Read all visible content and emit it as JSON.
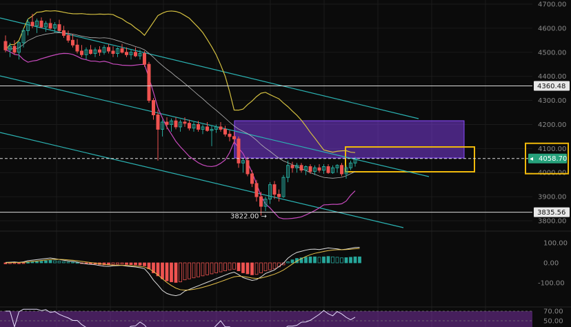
{
  "chart_data": {
    "type": "candlestick",
    "main_panel": {
      "y_ticks": [
        {
          "value": 4700,
          "label": "4700.00"
        },
        {
          "value": 4600,
          "label": "4600.00"
        },
        {
          "value": 4500,
          "label": "4500.00"
        },
        {
          "value": 4400,
          "label": "4400.00"
        },
        {
          "value": 4300,
          "label": "4300.00"
        },
        {
          "value": 4200,
          "label": "4200.00"
        },
        {
          "value": 4100,
          "label": "4100.00"
        },
        {
          "value": 4000,
          "label": "4000.00"
        },
        {
          "value": 3900,
          "label": "3900.00"
        },
        {
          "value": 3800,
          "label": "3800.00"
        }
      ],
      "ylim": [
        3775,
        4710
      ],
      "horizontal_levels": [
        {
          "value": 4360.48,
          "label": "4360.48",
          "style": "solid",
          "color": "#dddddd"
        },
        {
          "value": 3835.56,
          "label": "3835.56",
          "style": "solid",
          "color": "#dddddd"
        },
        {
          "value": 4058.7,
          "label": "4058.70",
          "style": "dashed",
          "color": "#dddddd"
        }
      ],
      "current_price": {
        "value": 4058.7,
        "label": "4058.70",
        "color": "#26a17b"
      },
      "low_annotation": {
        "value": 3822.0,
        "text": "3822.00 →"
      },
      "candles": [
        {
          "o": 4545,
          "h": 4570,
          "l": 4500,
          "c": 4510
        },
        {
          "o": 4510,
          "h": 4540,
          "l": 4480,
          "c": 4525
        },
        {
          "o": 4525,
          "h": 4550,
          "l": 4490,
          "c": 4500
        },
        {
          "o": 4500,
          "h": 4545,
          "l": 4470,
          "c": 4540
        },
        {
          "o": 4540,
          "h": 4600,
          "l": 4520,
          "c": 4590
        },
        {
          "o": 4590,
          "h": 4640,
          "l": 4570,
          "c": 4625
        },
        {
          "o": 4625,
          "h": 4660,
          "l": 4600,
          "c": 4610
        },
        {
          "o": 4610,
          "h": 4640,
          "l": 4580,
          "c": 4630
        },
        {
          "o": 4630,
          "h": 4645,
          "l": 4600,
          "c": 4605
        },
        {
          "o": 4605,
          "h": 4630,
          "l": 4585,
          "c": 4620
        },
        {
          "o": 4620,
          "h": 4640,
          "l": 4595,
          "c": 4600
        },
        {
          "o": 4600,
          "h": 4625,
          "l": 4580,
          "c": 4615
        },
        {
          "o": 4615,
          "h": 4635,
          "l": 4585,
          "c": 4590
        },
        {
          "o": 4590,
          "h": 4610,
          "l": 4560,
          "c": 4570
        },
        {
          "o": 4570,
          "h": 4590,
          "l": 4540,
          "c": 4550
        },
        {
          "o": 4550,
          "h": 4575,
          "l": 4520,
          "c": 4530
        },
        {
          "o": 4530,
          "h": 4555,
          "l": 4495,
          "c": 4505
        },
        {
          "o": 4505,
          "h": 4530,
          "l": 4480,
          "c": 4490
        },
        {
          "o": 4490,
          "h": 4520,
          "l": 4470,
          "c": 4510
        },
        {
          "o": 4510,
          "h": 4530,
          "l": 4490,
          "c": 4495
        },
        {
          "o": 4495,
          "h": 4520,
          "l": 4480,
          "c": 4510
        },
        {
          "o": 4510,
          "h": 4525,
          "l": 4485,
          "c": 4500
        },
        {
          "o": 4500,
          "h": 4530,
          "l": 4490,
          "c": 4520
        },
        {
          "o": 4520,
          "h": 4535,
          "l": 4495,
          "c": 4505
        },
        {
          "o": 4505,
          "h": 4525,
          "l": 4480,
          "c": 4495
        },
        {
          "o": 4495,
          "h": 4520,
          "l": 4480,
          "c": 4515
        },
        {
          "o": 4515,
          "h": 4535,
          "l": 4495,
          "c": 4500
        },
        {
          "o": 4500,
          "h": 4520,
          "l": 4480,
          "c": 4490
        },
        {
          "o": 4490,
          "h": 4510,
          "l": 4470,
          "c": 4500
        },
        {
          "o": 4500,
          "h": 4520,
          "l": 4480,
          "c": 4485
        },
        {
          "o": 4485,
          "h": 4510,
          "l": 4470,
          "c": 4495
        },
        {
          "o": 4495,
          "h": 4505,
          "l": 4440,
          "c": 4450
        },
        {
          "o": 4450,
          "h": 4460,
          "l": 4290,
          "c": 4300
        },
        {
          "o": 4300,
          "h": 4310,
          "l": 4220,
          "c": 4240
        },
        {
          "o": 4240,
          "h": 4260,
          "l": 4050,
          "c": 4180
        },
        {
          "o": 4180,
          "h": 4220,
          "l": 4150,
          "c": 4210
        },
        {
          "o": 4210,
          "h": 4230,
          "l": 4180,
          "c": 4200
        },
        {
          "o": 4200,
          "h": 4225,
          "l": 4170,
          "c": 4215
        },
        {
          "o": 4215,
          "h": 4230,
          "l": 4180,
          "c": 4190
        },
        {
          "o": 4190,
          "h": 4220,
          "l": 4170,
          "c": 4210
        },
        {
          "o": 4210,
          "h": 4230,
          "l": 4190,
          "c": 4205
        },
        {
          "o": 4205,
          "h": 4220,
          "l": 4175,
          "c": 4185
        },
        {
          "o": 4185,
          "h": 4210,
          "l": 4170,
          "c": 4200
        },
        {
          "o": 4200,
          "h": 4215,
          "l": 4170,
          "c": 4180
        },
        {
          "o": 4180,
          "h": 4200,
          "l": 4160,
          "c": 4190
        },
        {
          "o": 4190,
          "h": 4210,
          "l": 4170,
          "c": 4175
        },
        {
          "o": 4175,
          "h": 4195,
          "l": 4110,
          "c": 4180
        },
        {
          "o": 4180,
          "h": 4200,
          "l": 4165,
          "c": 4190
        },
        {
          "o": 4190,
          "h": 4210,
          "l": 4170,
          "c": 4180
        },
        {
          "o": 4180,
          "h": 4195,
          "l": 4150,
          "c": 4160
        },
        {
          "o": 4160,
          "h": 4175,
          "l": 4130,
          "c": 4150
        },
        {
          "o": 4150,
          "h": 4170,
          "l": 4120,
          "c": 4140
        },
        {
          "o": 4140,
          "h": 4150,
          "l": 4020,
          "c": 4040
        },
        {
          "o": 4040,
          "h": 4060,
          "l": 4000,
          "c": 4050
        },
        {
          "o": 4050,
          "h": 4065,
          "l": 3985,
          "c": 3995
        },
        {
          "o": 3995,
          "h": 4010,
          "l": 3940,
          "c": 3955
        },
        {
          "o": 3955,
          "h": 3970,
          "l": 3880,
          "c": 3900
        },
        {
          "o": 3900,
          "h": 3920,
          "l": 3822,
          "c": 3860
        },
        {
          "o": 3860,
          "h": 3900,
          "l": 3840,
          "c": 3890
        },
        {
          "o": 3890,
          "h": 3960,
          "l": 3870,
          "c": 3950
        },
        {
          "o": 3950,
          "h": 3965,
          "l": 3890,
          "c": 3910
        },
        {
          "o": 3910,
          "h": 3930,
          "l": 3880,
          "c": 3900
        },
        {
          "o": 3900,
          "h": 3990,
          "l": 3895,
          "c": 3980
        },
        {
          "o": 3980,
          "h": 4050,
          "l": 3960,
          "c": 4030
        },
        {
          "o": 4030,
          "h": 4045,
          "l": 4000,
          "c": 4020
        },
        {
          "o": 4020,
          "h": 4040,
          "l": 4000,
          "c": 4030
        },
        {
          "o": 4030,
          "h": 4040,
          "l": 4000,
          "c": 4010
        },
        {
          "o": 4010,
          "h": 4030,
          "l": 3990,
          "c": 4025
        },
        {
          "o": 4025,
          "h": 4035,
          "l": 3995,
          "c": 4005
        },
        {
          "o": 4005,
          "h": 4030,
          "l": 3990,
          "c": 4020
        },
        {
          "o": 4020,
          "h": 4035,
          "l": 4000,
          "c": 4010
        },
        {
          "o": 4010,
          "h": 4035,
          "l": 3995,
          "c": 4025
        },
        {
          "o": 4025,
          "h": 4035,
          "l": 3995,
          "c": 4000
        },
        {
          "o": 4000,
          "h": 4030,
          "l": 3995,
          "c": 4020
        },
        {
          "o": 4020,
          "h": 4035,
          "l": 4000,
          "c": 4030
        },
        {
          "o": 4030,
          "h": 4040,
          "l": 3985,
          "c": 3995
        },
        {
          "o": 3995,
          "h": 4030,
          "l": 3975,
          "c": 4020
        },
        {
          "o": 4020,
          "h": 4050,
          "l": 4010,
          "c": 4040
        },
        {
          "o": 4040,
          "h": 4065,
          "l": 4025,
          "c": 4058
        }
      ],
      "colors": {
        "up": "#26a69a",
        "down": "#ef5350",
        "bb_upper": "#d4c040",
        "bb_lower": "#c94bbf",
        "bb_mid": "#b8b8b8",
        "channel": "#2bb3b3"
      }
    },
    "macd_panel": {
      "y_ticks": [
        {
          "value": 100,
          "label": "100.00"
        },
        {
          "value": 0,
          "label": "0.00"
        },
        {
          "value": -100,
          "label": "-100.00"
        }
      ],
      "ylim": [
        -150,
        150
      ],
      "histogram": [
        -5,
        -4,
        -3,
        -4,
        -2,
        2,
        4,
        6,
        8,
        10,
        12,
        10,
        8,
        6,
        4,
        3,
        1,
        -2,
        -4,
        -5,
        -6,
        -8,
        -10,
        -10,
        -8,
        -7,
        -6,
        -8,
        -9,
        -10,
        -12,
        -15,
        -30,
        -50,
        -65,
        -80,
        -90,
        -95,
        -98,
        -95,
        -85,
        -80,
        -75,
        -70,
        -65,
        -60,
        -55,
        -50,
        -45,
        -40,
        -35,
        -32,
        -40,
        -50,
        -55,
        -60,
        -58,
        -50,
        -40,
        -35,
        -30,
        -20,
        -10,
        5,
        15,
        22,
        25,
        28,
        30,
        30,
        28,
        30,
        32,
        30,
        28,
        25,
        26,
        28,
        30,
        30
      ]
    },
    "rsi_panel": {
      "y_ticks": [
        {
          "value": 70,
          "label": "70.00"
        },
        {
          "value": 50,
          "label": "50.00"
        }
      ],
      "ylim": [
        30,
        75
      ]
    }
  }
}
